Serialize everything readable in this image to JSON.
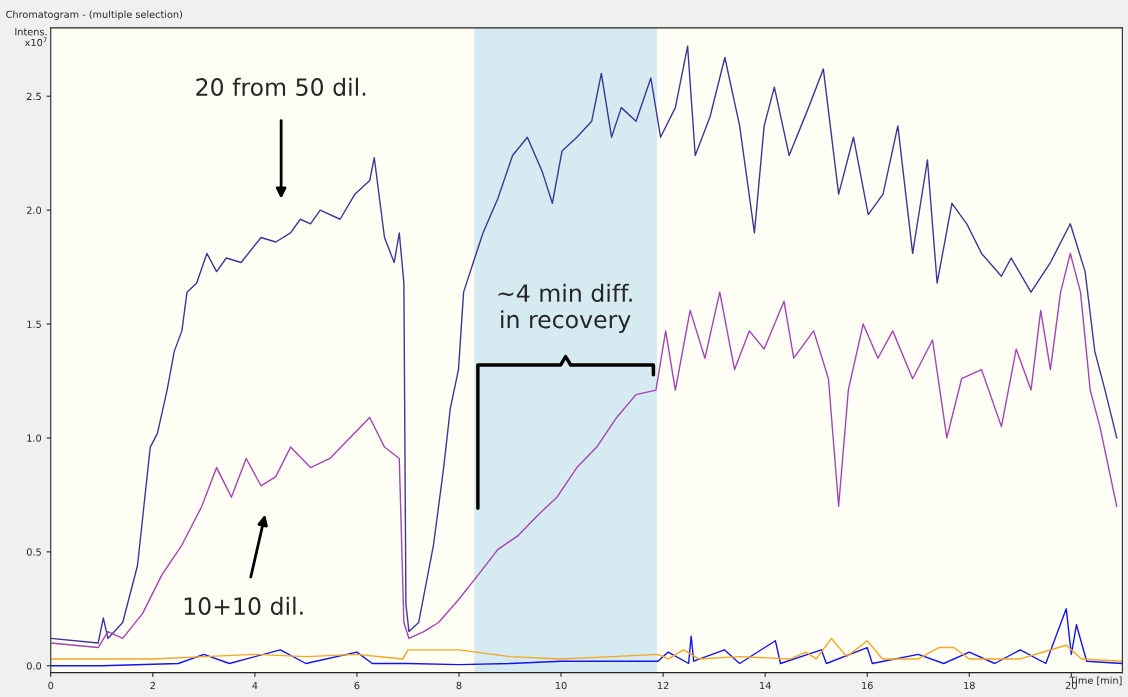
{
  "chart_data": {
    "type": "line",
    "title": "Chromatogram - (multiple selection)",
    "xlabel": "Time [min]",
    "ylabel": "Intens.\nx10$^{7}$",
    "xlim": [
      0,
      21
    ],
    "ylim": [
      -0.03,
      2.8
    ],
    "xticks": [
      0,
      2,
      4,
      6,
      8,
      10,
      12,
      14,
      16,
      18,
      20
    ],
    "yticks": [
      {
        "value": 0,
        "label": "0.0"
      },
      0.5,
      {
        "value": 1,
        "label": "1.0"
      },
      1.5,
      {
        "value": 2,
        "label": "2.0"
      },
      2.5
    ],
    "grid": false,
    "legend": false,
    "marker": "none",
    "line_style": "solid",
    "bands": [
      {
        "axis": "x",
        "from": 8.3,
        "to": 11.88,
        "color": "#d6eaf2"
      }
    ],
    "annotations": [
      "20 from 50 dil.",
      "10+10 dil.",
      "~4 min diff.\nin recovery"
    ],
    "series": [
      {
        "color": "#3f3596",
        "x": [
          0,
          0.93,
          1.03,
          1.12,
          1.41,
          1.7,
          1.95,
          2.09,
          2.28,
          2.42,
          2.57,
          2.67,
          2.86,
          3.06,
          3.25,
          3.44,
          3.73,
          4.12,
          4.41,
          4.7,
          4.89,
          5.09,
          5.28,
          5.67,
          5.96,
          6.25,
          6.34,
          6.54,
          6.73,
          6.83,
          6.92,
          6.96,
          7.02,
          7.21,
          7.5,
          7.7,
          7.83,
          7.99,
          8.09,
          8.28,
          8.47,
          8.76,
          9.05,
          9.34,
          9.63,
          9.83,
          10.02,
          10.31,
          10.6,
          10.79,
          10.99,
          11.18,
          11.47,
          11.76,
          11.95,
          12.24,
          12.48,
          12.63,
          12.92,
          13.21,
          13.5,
          13.79,
          13.98,
          14.18,
          14.47,
          14.85,
          15.14,
          15.44,
          15.73,
          16.02,
          16.31,
          16.6,
          16.89,
          17.18,
          17.37,
          17.66,
          17.95,
          18.24,
          18.63,
          18.82,
          19.21,
          19.59,
          19.98,
          20.27,
          20.46,
          20.66,
          20.89
        ],
        "values": [
          0.12,
          0.1,
          0.21,
          0.12,
          0.19,
          0.44,
          0.96,
          1.02,
          1.21,
          1.38,
          1.47,
          1.64,
          1.68,
          1.81,
          1.73,
          1.79,
          1.77,
          1.88,
          1.86,
          1.9,
          1.96,
          1.94,
          2.0,
          1.96,
          2.07,
          2.13,
          2.23,
          1.88,
          1.77,
          1.9,
          1.68,
          0.27,
          0.15,
          0.19,
          0.53,
          0.87,
          1.13,
          1.3,
          1.64,
          1.77,
          1.9,
          2.05,
          2.24,
          2.32,
          2.17,
          2.03,
          2.26,
          2.32,
          2.39,
          2.6,
          2.32,
          2.45,
          2.39,
          2.58,
          2.32,
          2.45,
          2.72,
          2.24,
          2.41,
          2.67,
          2.37,
          1.9,
          2.37,
          2.54,
          2.24,
          2.45,
          2.62,
          2.07,
          2.32,
          1.98,
          2.07,
          2.37,
          1.81,
          2.22,
          1.68,
          2.03,
          1.94,
          1.81,
          1.71,
          1.79,
          1.64,
          1.77,
          1.94,
          1.73,
          1.38,
          1.21,
          1.0
        ]
      },
      {
        "color": "#a445b2",
        "x": [
          0,
          0.93,
          1.12,
          1.41,
          1.8,
          2.18,
          2.57,
          2.96,
          3.25,
          3.54,
          3.83,
          4.12,
          4.41,
          4.7,
          5.09,
          5.47,
          5.86,
          6.25,
          6.54,
          6.83,
          6.92,
          7.02,
          7.31,
          7.6,
          7.99,
          8.38,
          8.76,
          9.15,
          9.54,
          9.92,
          10.31,
          10.7,
          11.09,
          11.47,
          11.86,
          12.05,
          12.24,
          12.53,
          12.82,
          13.11,
          13.4,
          13.69,
          13.98,
          14.37,
          14.56,
          14.95,
          15.24,
          15.44,
          15.63,
          15.92,
          16.21,
          16.5,
          16.89,
          17.28,
          17.56,
          17.85,
          18.24,
          18.63,
          18.92,
          19.21,
          19.4,
          19.59,
          19.79,
          19.98,
          20.18,
          20.37,
          20.56,
          20.89
        ],
        "values": [
          0.1,
          0.08,
          0.15,
          0.12,
          0.23,
          0.4,
          0.53,
          0.7,
          0.87,
          0.74,
          0.91,
          0.79,
          0.83,
          0.96,
          0.87,
          0.91,
          1.0,
          1.09,
          0.96,
          0.91,
          0.19,
          0.12,
          0.15,
          0.19,
          0.29,
          0.4,
          0.51,
          0.57,
          0.66,
          0.74,
          0.87,
          0.96,
          1.09,
          1.19,
          1.21,
          1.47,
          1.21,
          1.56,
          1.35,
          1.64,
          1.3,
          1.47,
          1.39,
          1.6,
          1.35,
          1.47,
          1.26,
          0.7,
          1.21,
          1.5,
          1.35,
          1.47,
          1.26,
          1.43,
          1.0,
          1.26,
          1.3,
          1.05,
          1.39,
          1.21,
          1.56,
          1.3,
          1.64,
          1.81,
          1.64,
          1.21,
          1.05,
          0.7
        ]
      },
      {
        "color": "#1414f0",
        "x": [
          0,
          1,
          2.5,
          3,
          3.5,
          4.5,
          5,
          6,
          6.3,
          7,
          8,
          9,
          10,
          11,
          11.9,
          12.1,
          12.5,
          12.55,
          12.6,
          13.2,
          13.5,
          14.2,
          14.3,
          15.1,
          15.2,
          16,
          16.1,
          17,
          17.5,
          18,
          18.5,
          19,
          19.5,
          19.9,
          20.0,
          20.1,
          20.3,
          21
        ],
        "values": [
          0.0,
          0.0,
          0.01,
          0.05,
          0.01,
          0.07,
          0.01,
          0.06,
          0.01,
          0.01,
          0.005,
          0.01,
          0.02,
          0.02,
          0.02,
          0.06,
          0.01,
          0.13,
          0.02,
          0.07,
          0.01,
          0.11,
          0.01,
          0.07,
          0.01,
          0.08,
          0.01,
          0.05,
          0.01,
          0.06,
          0.01,
          0.07,
          0.01,
          0.25,
          0.05,
          0.18,
          0.02,
          0.01
        ]
      },
      {
        "color": "#f5a623",
        "x": [
          0,
          1,
          2,
          3,
          4,
          5,
          6,
          6.9,
          7.0,
          8,
          9,
          10,
          11,
          11.9,
          12.1,
          12.4,
          12.7,
          13.5,
          14.5,
          14.8,
          15.0,
          15.3,
          15.6,
          16.0,
          16.3,
          17.0,
          17.4,
          17.7,
          18.0,
          19,
          19.9,
          20.2,
          21
        ],
        "values": [
          0.03,
          0.03,
          0.03,
          0.04,
          0.05,
          0.04,
          0.05,
          0.03,
          0.07,
          0.07,
          0.04,
          0.03,
          0.04,
          0.05,
          0.03,
          0.07,
          0.03,
          0.04,
          0.03,
          0.06,
          0.03,
          0.12,
          0.04,
          0.11,
          0.03,
          0.03,
          0.08,
          0.08,
          0.03,
          0.03,
          0.09,
          0.03,
          0.02
        ]
      }
    ]
  }
}
